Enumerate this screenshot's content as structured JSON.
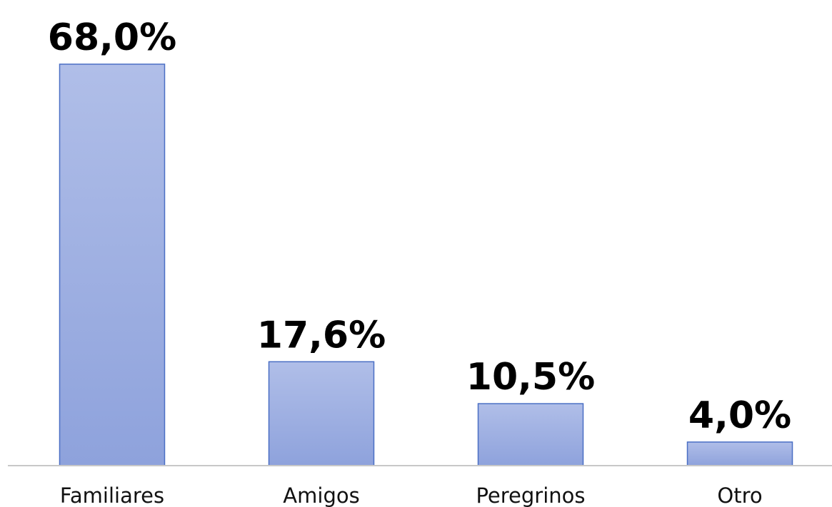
{
  "chart_data": {
    "type": "bar",
    "categories": [
      "Familiares",
      "Amigos",
      "Peregrinos",
      "Otro"
    ],
    "values": [
      68.0,
      17.6,
      10.5,
      4.0
    ],
    "value_labels": [
      "68,0%",
      "17,6%",
      "10,5%",
      "4,0%"
    ],
    "color": "#a3b3e3"
  }
}
